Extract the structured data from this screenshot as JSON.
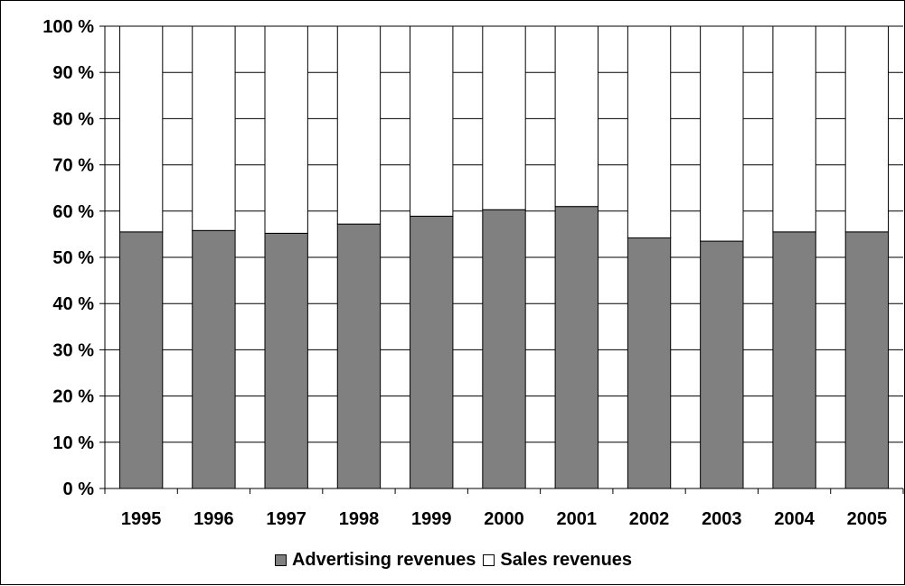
{
  "chart_data": {
    "type": "bar",
    "stacked": true,
    "percent_stacked": true,
    "categories": [
      "1995",
      "1996",
      "1997",
      "1998",
      "1999",
      "2000",
      "2001",
      "2002",
      "2003",
      "2004",
      "2005"
    ],
    "series": [
      {
        "name": "Advertising revenues",
        "color": "#808080",
        "values": [
          55.5,
          55.8,
          55.2,
          57.2,
          58.9,
          60.3,
          61.0,
          54.2,
          53.5,
          55.5,
          55.5
        ]
      },
      {
        "name": "Sales revenues",
        "color": "#ffffff",
        "values": [
          44.5,
          44.2,
          44.8,
          42.8,
          41.1,
          39.7,
          39.0,
          45.8,
          46.5,
          44.5,
          44.5
        ]
      }
    ],
    "y_ticks": [
      "0 %",
      "10 %",
      "20 %",
      "30 %",
      "40 %",
      "50 %",
      "60 %",
      "70 %",
      "80 %",
      "90 %",
      "100 %"
    ],
    "ylim": [
      0,
      100
    ],
    "grid": true,
    "legend_position": "bottom"
  }
}
